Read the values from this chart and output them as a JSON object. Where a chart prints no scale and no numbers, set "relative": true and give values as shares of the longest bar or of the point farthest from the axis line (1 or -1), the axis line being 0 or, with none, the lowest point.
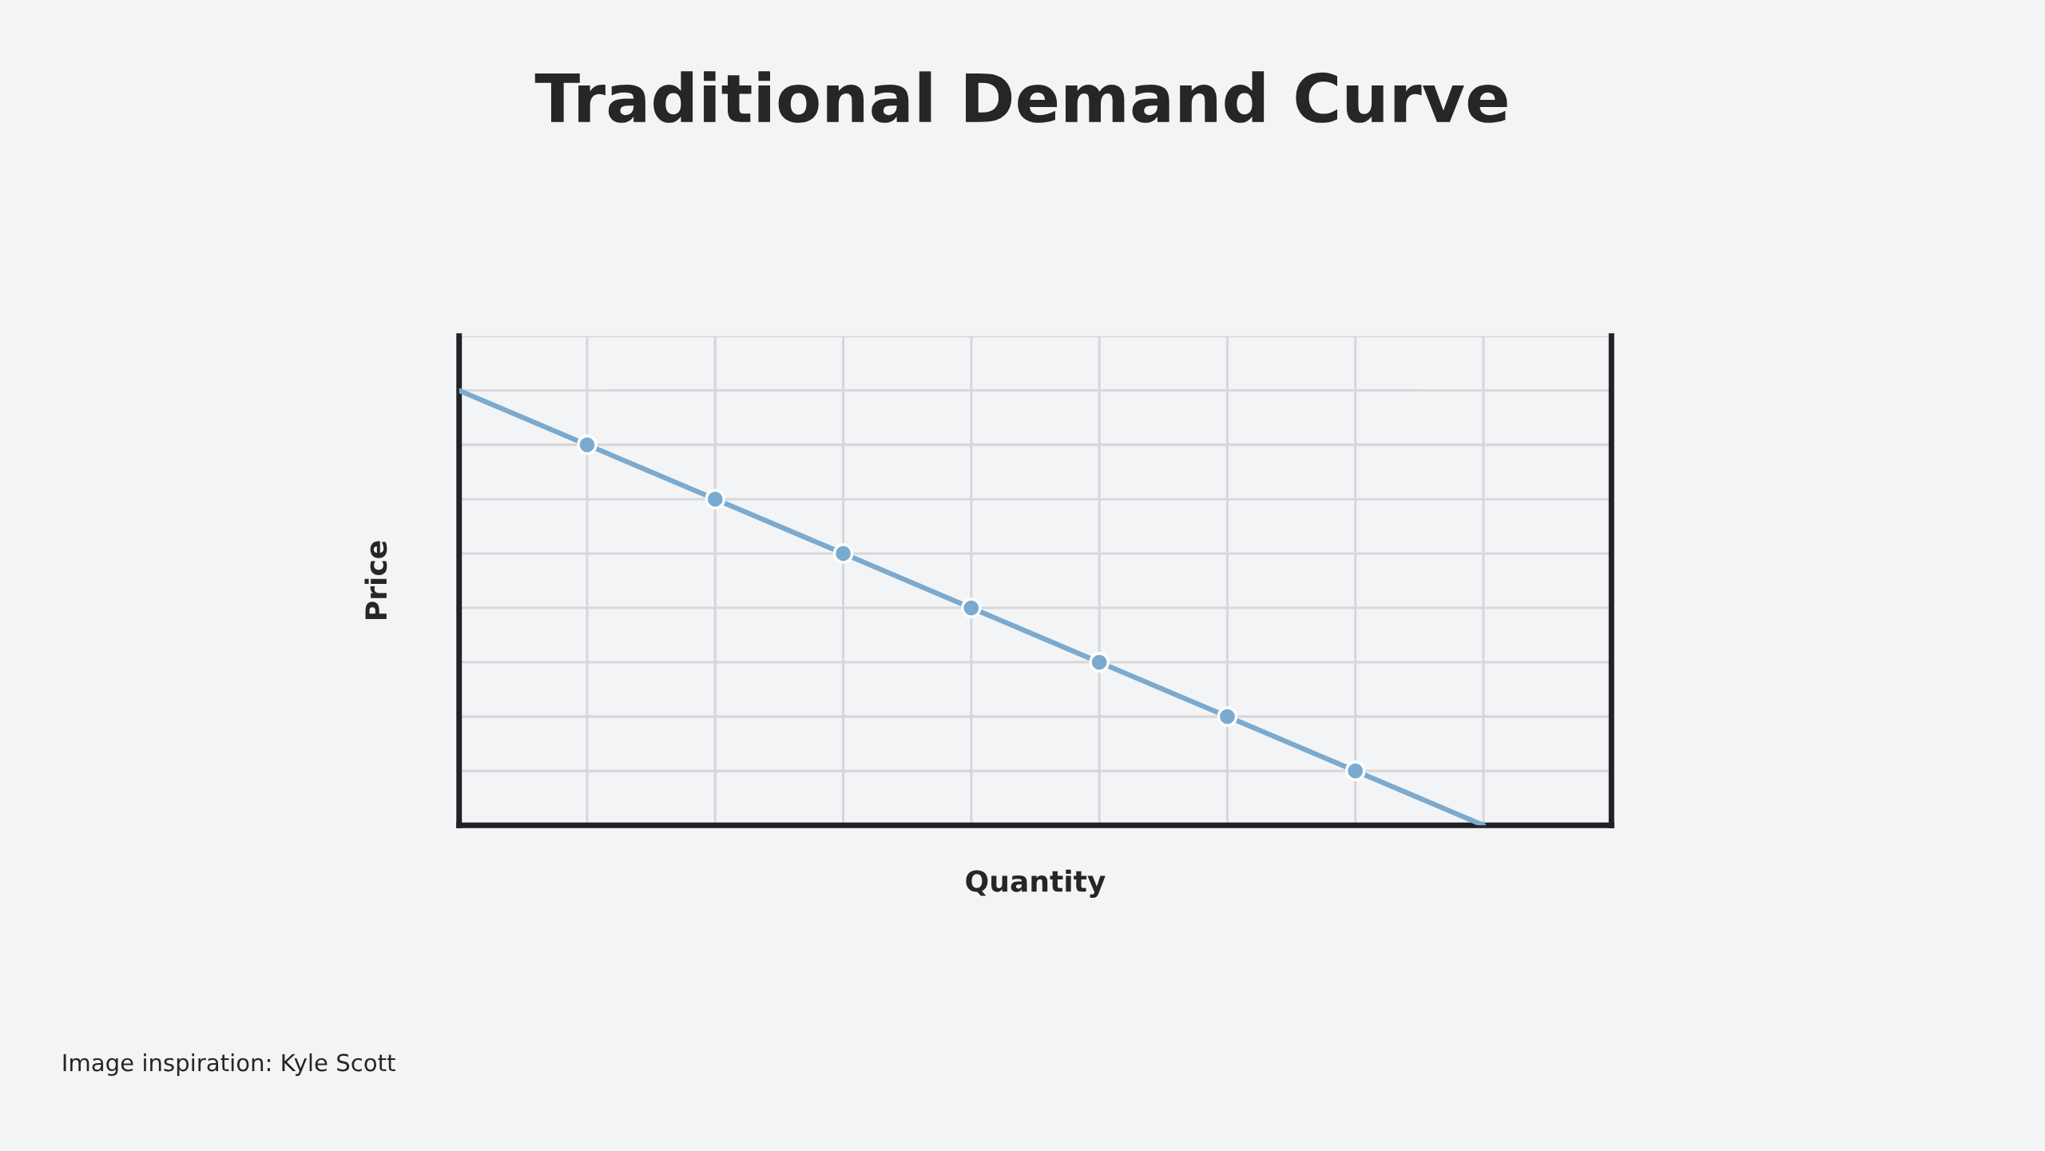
{
  "chart_data": {
    "type": "line",
    "title": "Traditional Demand Curve",
    "xlabel": "Quantity",
    "ylabel": "Price",
    "categories": [
      null,
      null,
      null,
      null,
      null,
      null,
      null,
      null,
      null
    ],
    "series": [
      {
        "color": "#7aaacf",
        "values": [
          1,
          0.875,
          0.75,
          0.625,
          0.5,
          0.375,
          0.25,
          0.125,
          0
        ]
      }
    ],
    "relative": true,
    "grid": true,
    "marker": "circle",
    "line_style": "solid",
    "legend": false,
    "tick_labels": false,
    "annotations": [
      "Image inspiration: Kyle Scott"
    ]
  }
}
